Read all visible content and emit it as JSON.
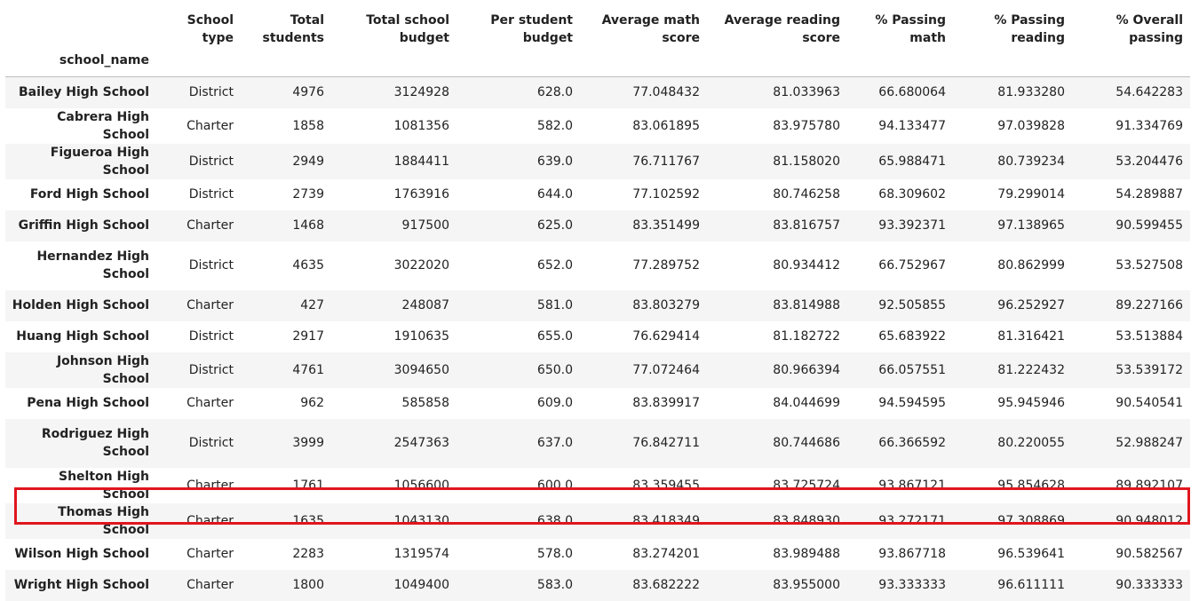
{
  "table": {
    "index_name": "school_name",
    "columns": [
      "School type",
      "Total students",
      "Total school budget",
      "Per student budget",
      "Average math score",
      "Average reading score",
      "% Passing math",
      "% Passing reading",
      "% Overall passing"
    ],
    "rows": [
      {
        "name": "Bailey High School",
        "cells": [
          "District",
          "4976",
          "3124928",
          "628.0",
          "77.048432",
          "81.033963",
          "66.680064",
          "81.933280",
          "54.642283"
        ]
      },
      {
        "name": "Cabrera High School",
        "cells": [
          "Charter",
          "1858",
          "1081356",
          "582.0",
          "83.061895",
          "83.975780",
          "94.133477",
          "97.039828",
          "91.334769"
        ]
      },
      {
        "name": "Figueroa High School",
        "cells": [
          "District",
          "2949",
          "1884411",
          "639.0",
          "76.711767",
          "81.158020",
          "65.988471",
          "80.739234",
          "53.204476"
        ]
      },
      {
        "name": "Ford High School",
        "cells": [
          "District",
          "2739",
          "1763916",
          "644.0",
          "77.102592",
          "80.746258",
          "68.309602",
          "79.299014",
          "54.289887"
        ]
      },
      {
        "name": "Griffin High School",
        "cells": [
          "Charter",
          "1468",
          "917500",
          "625.0",
          "83.351499",
          "83.816757",
          "93.392371",
          "97.138965",
          "90.599455"
        ]
      },
      {
        "name": "Hernandez High School",
        "cells": [
          "District",
          "4635",
          "3022020",
          "652.0",
          "77.289752",
          "80.934412",
          "66.752967",
          "80.862999",
          "53.527508"
        ]
      },
      {
        "name": "Holden High School",
        "cells": [
          "Charter",
          "427",
          "248087",
          "581.0",
          "83.803279",
          "83.814988",
          "92.505855",
          "96.252927",
          "89.227166"
        ]
      },
      {
        "name": "Huang High School",
        "cells": [
          "District",
          "2917",
          "1910635",
          "655.0",
          "76.629414",
          "81.182722",
          "65.683922",
          "81.316421",
          "53.513884"
        ]
      },
      {
        "name": "Johnson High School",
        "cells": [
          "District",
          "4761",
          "3094650",
          "650.0",
          "77.072464",
          "80.966394",
          "66.057551",
          "81.222432",
          "53.539172"
        ]
      },
      {
        "name": "Pena High School",
        "cells": [
          "Charter",
          "962",
          "585858",
          "609.0",
          "83.839917",
          "84.044699",
          "94.594595",
          "95.945946",
          "90.540541"
        ]
      },
      {
        "name": "Rodriguez High School",
        "cells": [
          "District",
          "3999",
          "2547363",
          "637.0",
          "76.842711",
          "80.744686",
          "66.366592",
          "80.220055",
          "52.988247"
        ]
      },
      {
        "name": "Shelton High School",
        "cells": [
          "Charter",
          "1761",
          "1056600",
          "600.0",
          "83.359455",
          "83.725724",
          "93.867121",
          "95.854628",
          "89.892107"
        ]
      },
      {
        "name": "Thomas High School",
        "cells": [
          "Charter",
          "1635",
          "1043130",
          "638.0",
          "83.418349",
          "83.848930",
          "93.272171",
          "97.308869",
          "90.948012"
        ]
      },
      {
        "name": "Wilson High School",
        "cells": [
          "Charter",
          "2283",
          "1319574",
          "578.0",
          "83.274201",
          "83.989488",
          "93.867718",
          "96.539641",
          "90.582567"
        ]
      },
      {
        "name": "Wright High School",
        "cells": [
          "Charter",
          "1800",
          "1049400",
          "583.0",
          "83.682222",
          "83.955000",
          "93.333333",
          "96.611111",
          "90.333333"
        ]
      }
    ]
  },
  "highlight": {
    "row_name": "Thomas High School",
    "color": "#e0161e"
  },
  "colors": {
    "row_stripe": "#f5f5f5",
    "row_plain": "#ffffff",
    "header_rule": "#bdbdbd"
  }
}
